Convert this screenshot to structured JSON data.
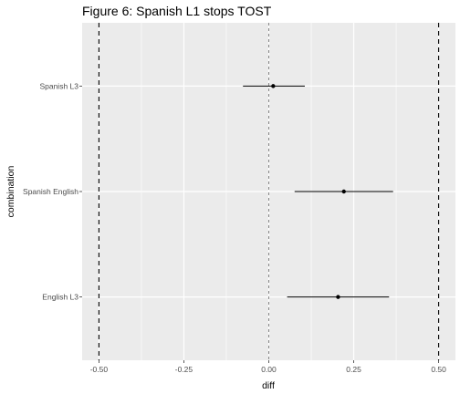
{
  "chart_data": {
    "type": "dot-errorbar",
    "title": "Figure 6: Spanish L1 stops TOST",
    "xlabel": "diff",
    "ylabel": "combination",
    "xlim": [
      -0.5,
      0.5
    ],
    "x_ticks": [
      "-0.50",
      "-0.25",
      "0.00",
      "0.25",
      "0.50"
    ],
    "categories": [
      "English L3",
      "Spanish English",
      "Spanish L3"
    ],
    "points": [
      {
        "category": "English L3",
        "estimate": 0.204,
        "lower": 0.054,
        "upper": 0.354
      },
      {
        "category": "Spanish English",
        "estimate": 0.221,
        "lower": 0.076,
        "upper": 0.366
      },
      {
        "category": "Spanish L3",
        "estimate": 0.013,
        "lower": -0.076,
        "upper": 0.106
      }
    ],
    "reference_lines": [
      {
        "x": -0.5,
        "style": "dashed"
      },
      {
        "x": 0.0,
        "style": "dashed-thin"
      },
      {
        "x": 0.5,
        "style": "dashed"
      }
    ],
    "grid": true,
    "colors": {
      "panel": "#ebebeb",
      "grid": "#ffffff",
      "point": "#000000"
    }
  }
}
